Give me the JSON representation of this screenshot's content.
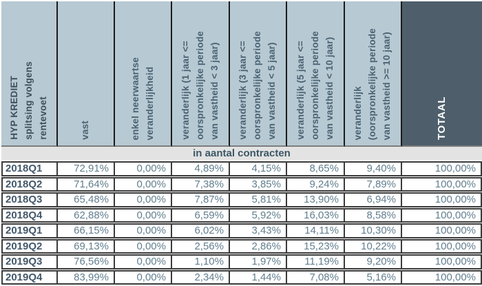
{
  "chart_data": {
    "type": "table",
    "title": "HYP KREDIET\nsplitsing volgens\nrentevoet",
    "section_label": "in aantal contracten",
    "columns": [
      {
        "label": "vast"
      },
      {
        "label": "enkel neerwaartse\nveranderlijkheid"
      },
      {
        "label": "veranderlijk (1 jaar <=\noorspronkelijke periode\nvan vastheid < 3 jaar)"
      },
      {
        "label": "veranderlijk (3 jaar <=\noorspronkelijke periode\nvan vastheid < 5 jaar)"
      },
      {
        "label": "veranderlijk (5 jaar <=\noorspronkelijke periode\nvan vastheid < 10 jaar)"
      },
      {
        "label": "veranderlijk\n(oorspronkelijke periode\nvan vastheid >= 10 jaar)"
      },
      {
        "label": "TOTAAL"
      }
    ],
    "rows": [
      {
        "label": "2018Q1",
        "values": [
          "72,91%",
          "0,00%",
          "4,89%",
          "4,15%",
          "8,65%",
          "9,40%",
          "100,00%"
        ]
      },
      {
        "label": "2018Q2",
        "values": [
          "71,64%",
          "0,00%",
          "7,38%",
          "3,85%",
          "9,24%",
          "7,89%",
          "100,00%"
        ]
      },
      {
        "label": "2018Q3",
        "values": [
          "65,48%",
          "0,00%",
          "7,87%",
          "5,81%",
          "13,90%",
          "6,94%",
          "100,00%"
        ]
      },
      {
        "label": "2018Q4",
        "values": [
          "62,88%",
          "0,00%",
          "6,59%",
          "5,92%",
          "16,03%",
          "8,58%",
          "100,00%"
        ]
      },
      {
        "label": "2019Q1",
        "values": [
          "66,15%",
          "0,00%",
          "6,02%",
          "3,43%",
          "14,11%",
          "10,30%",
          "100,00%"
        ]
      },
      {
        "label": "2019Q2",
        "values": [
          "69,13%",
          "0,00%",
          "2,56%",
          "2,86%",
          "15,23%",
          "10,22%",
          "100,00%"
        ]
      },
      {
        "label": "2019Q3",
        "values": [
          "76,56%",
          "0,00%",
          "1,10%",
          "1,97%",
          "11,19%",
          "9,20%",
          "100,00%"
        ]
      },
      {
        "label": "2019Q4",
        "values": [
          "83,99%",
          "0,00%",
          "2,34%",
          "1,44%",
          "7,08%",
          "5,16%",
          "100,00%"
        ]
      }
    ]
  },
  "colors": {
    "header_bg": "#b7c9d2",
    "totaal_header_bg": "#4e5f6b",
    "header_text": "#4a6273",
    "title_text": "#3f505c",
    "totaal_text": "#ffffff",
    "section_band_bg": "#e3e3e3",
    "section_band_text": "#3d5766",
    "row_label_text": "#43586a",
    "value_text": "#617e8e",
    "grid_border": "#3b3b3b",
    "header_divider": "#1b1b1b",
    "header_underline": "#7d7d7d"
  }
}
